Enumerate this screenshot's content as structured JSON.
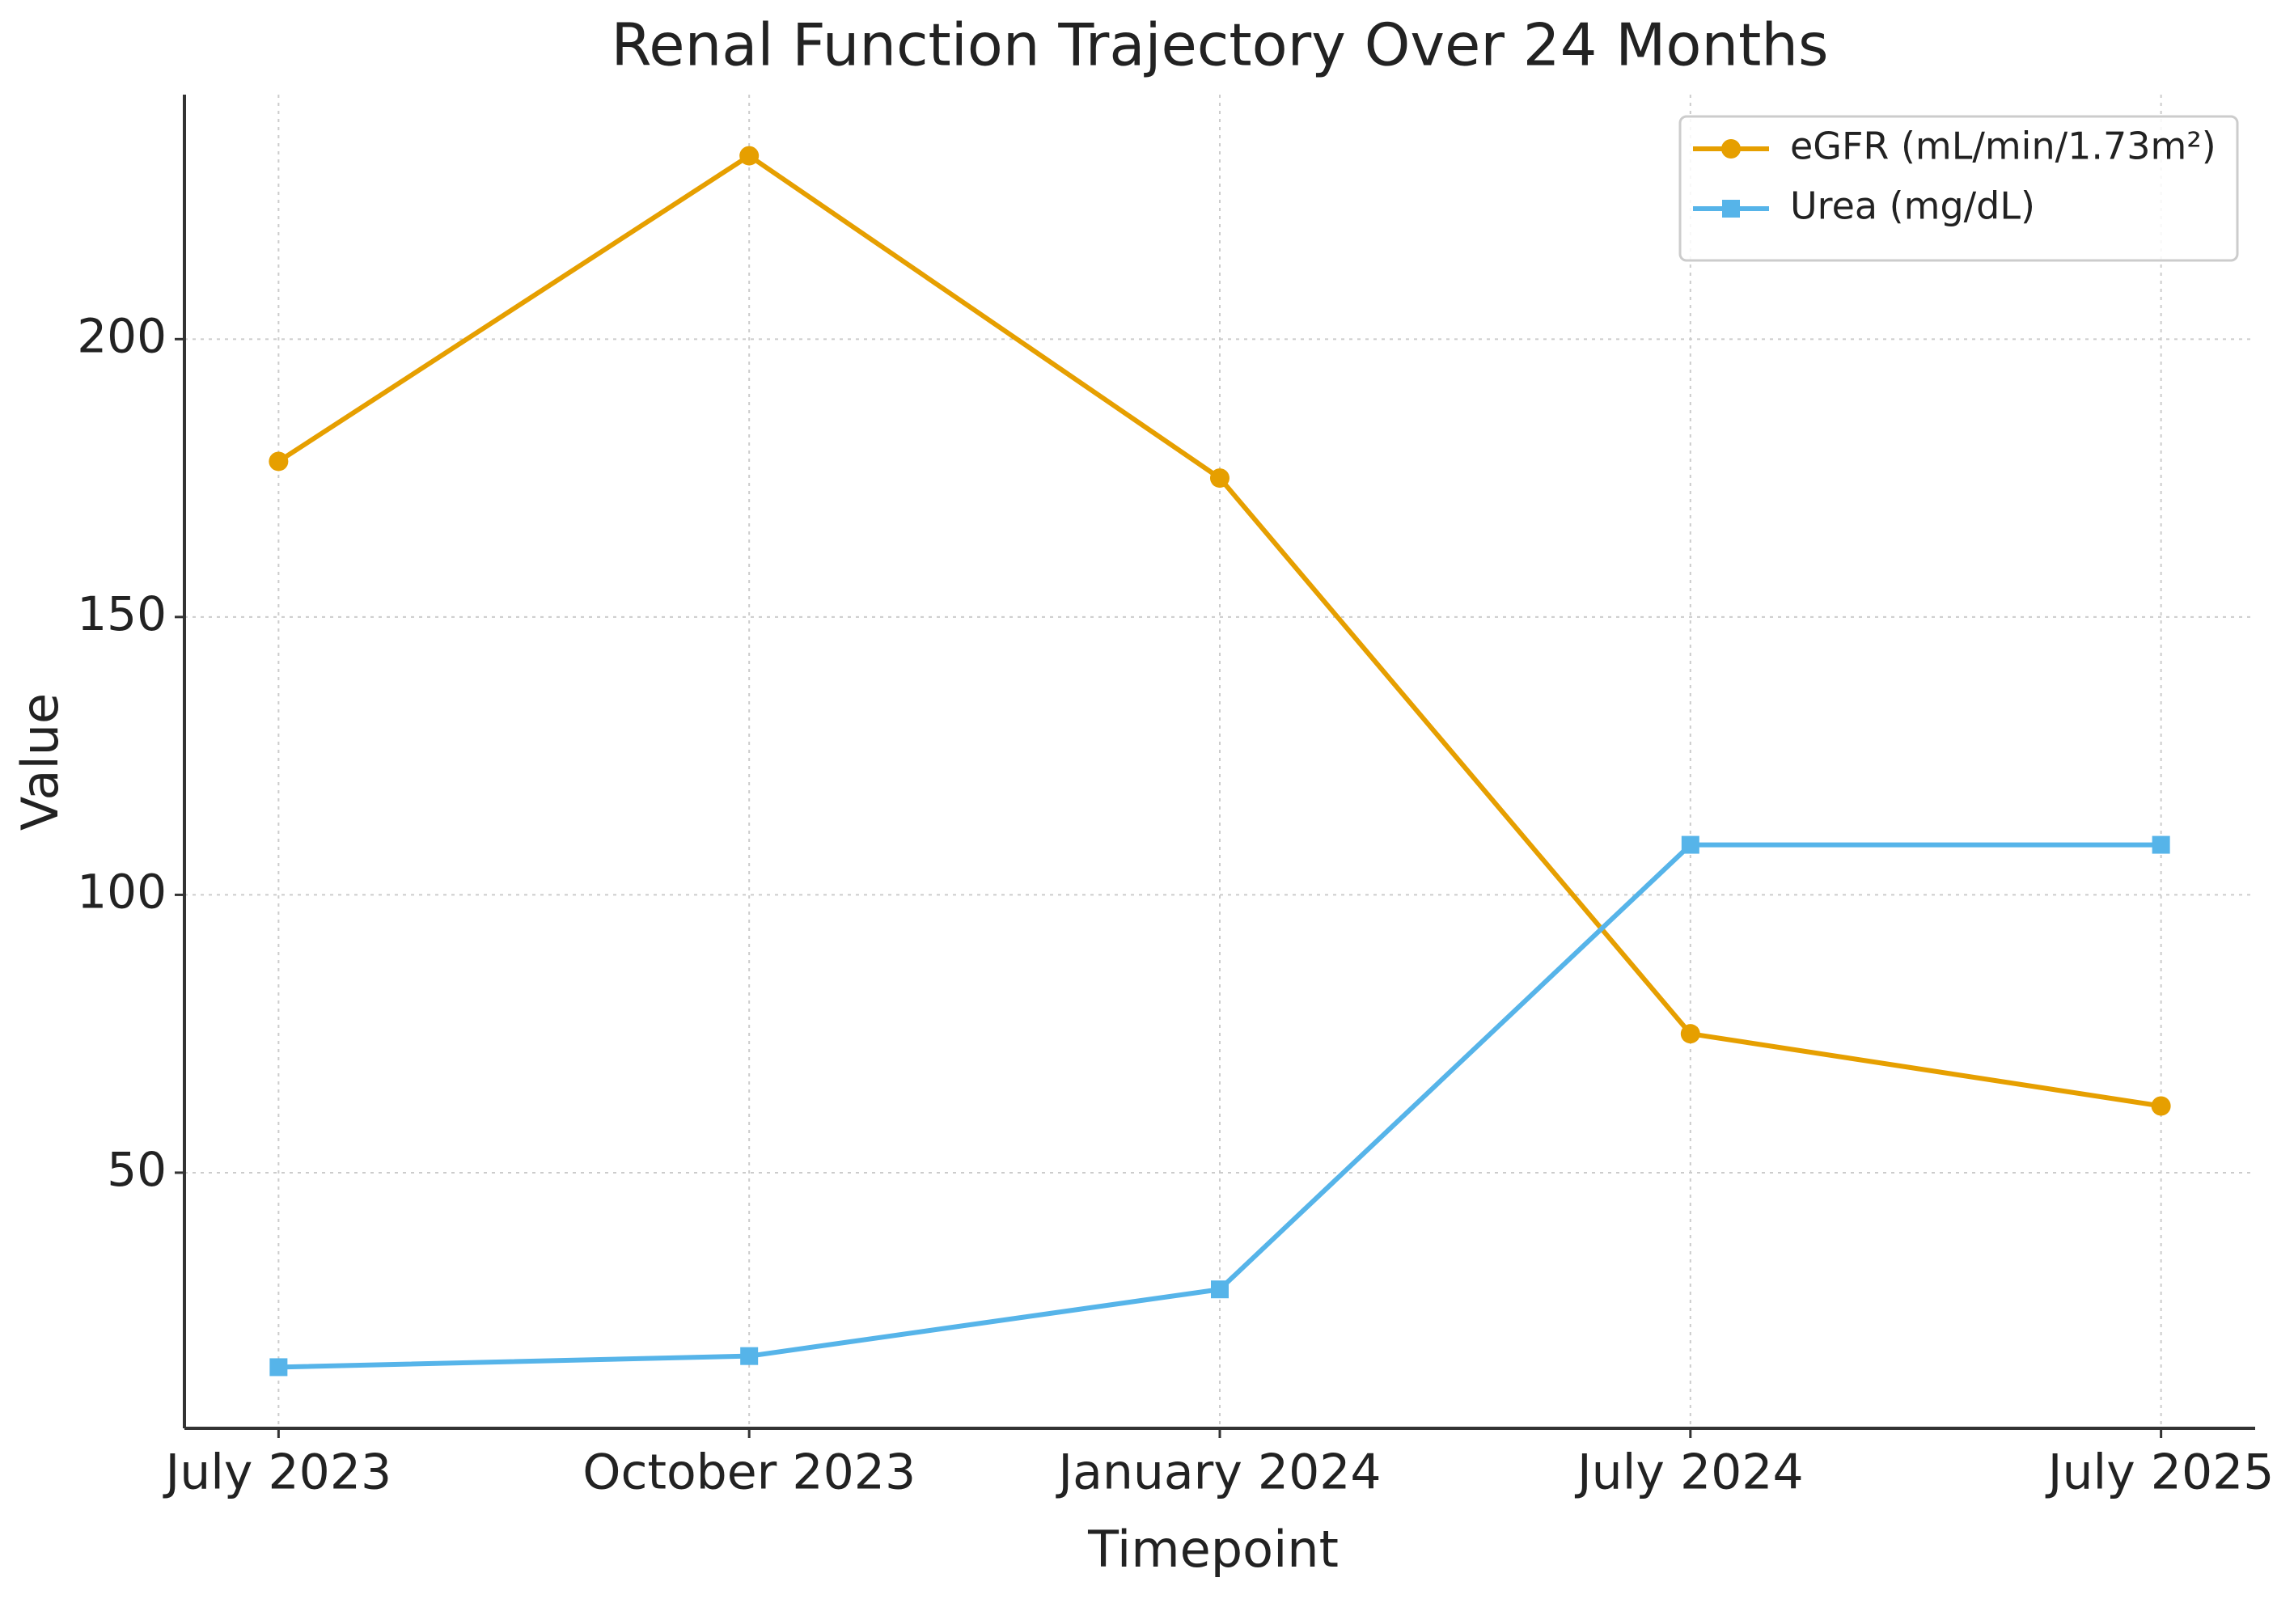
{
  "chart_data": {
    "type": "line",
    "title": "Renal Function Trajectory Over 24 Months",
    "x_label": "Timepoint",
    "y_label": "Value",
    "categories": [
      "July 2023",
      "October 2023",
      "January 2024",
      "July 2024",
      "July 2025"
    ],
    "series": [
      {
        "name": "eGFR (mL/min/1.73m²)",
        "color": "#e69f00",
        "marker": "circle",
        "values": [
          178,
          233,
          175,
          75,
          62
        ]
      },
      {
        "name": "Urea (mg/dL)",
        "color": "#56b4e9",
        "marker": "square",
        "values": [
          15,
          17,
          29,
          109,
          109
        ]
      }
    ],
    "ylim": [
      4,
      244
    ],
    "yticks": [
      50,
      100,
      150,
      200
    ],
    "grid": true,
    "legend": "upper right"
  }
}
